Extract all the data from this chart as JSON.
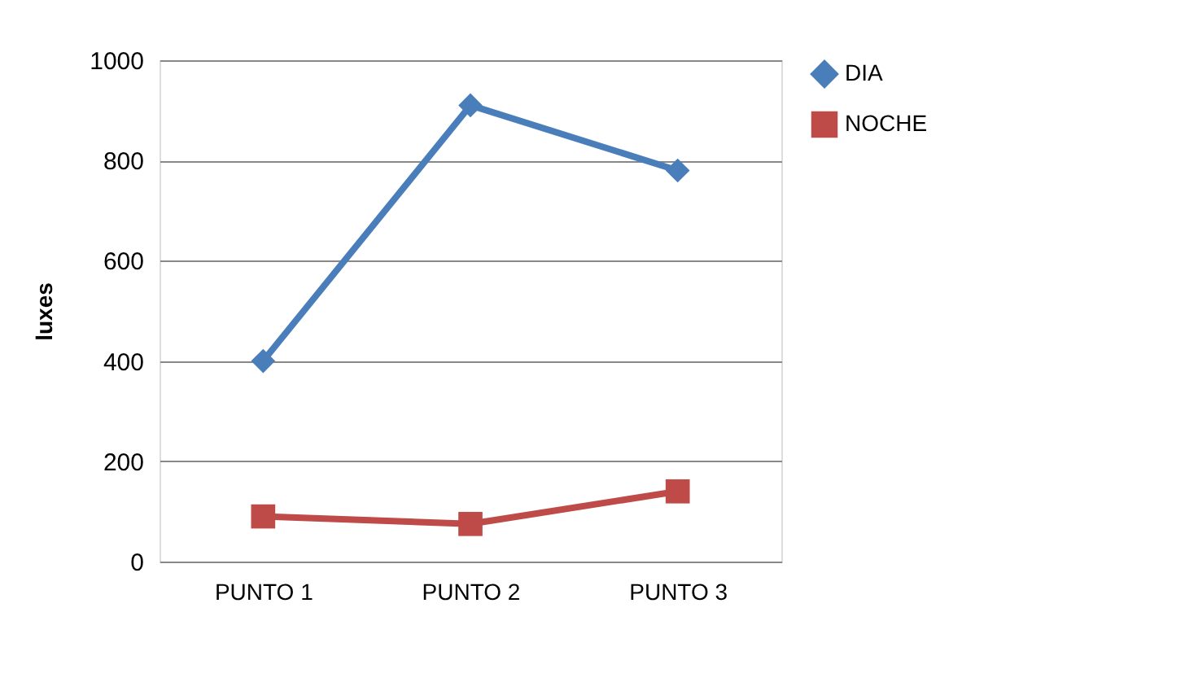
{
  "chart_data": {
    "type": "line",
    "ylabel": "luxes",
    "categories": [
      "PUNTO 1",
      "PUNTO 2",
      "PUNTO 3"
    ],
    "series": [
      {
        "name": "DIA",
        "color": "#4a7ebb",
        "marker": "diamond",
        "values": [
          400,
          910,
          780
        ]
      },
      {
        "name": "NOCHE",
        "color": "#be4b48",
        "marker": "square",
        "values": [
          90,
          75,
          140
        ]
      }
    ],
    "ylim": [
      0,
      1000
    ],
    "yticks": [
      0,
      200,
      400,
      600,
      800,
      1000
    ],
    "grid": "y",
    "legend": "right"
  }
}
